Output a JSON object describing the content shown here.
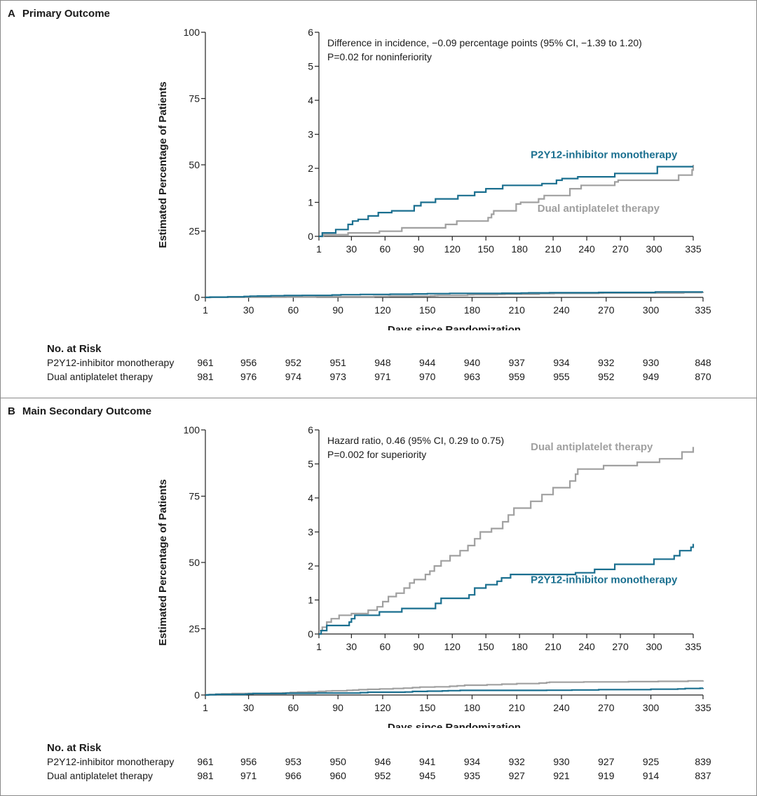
{
  "colors": {
    "monotherapy": "#1a6f8f",
    "dual": "#a0a0a0",
    "axis": "#222222",
    "border": "#8a8a8a"
  },
  "chart_data": [
    {
      "type": "line",
      "panel_letter": "A",
      "title": "Primary Outcome",
      "xlabel": "Days since Randomization",
      "ylabel": "Estimated Percentage of Patients",
      "x_ticks": [
        1,
        30,
        60,
        90,
        120,
        150,
        180,
        210,
        240,
        270,
        300,
        335
      ],
      "y_ticks": [
        0,
        25,
        50,
        75,
        100
      ],
      "xlim": [
        1,
        335
      ],
      "ylim": [
        0,
        100
      ],
      "series": [
        {
          "name": "P2Y12-inhibitor monotherapy",
          "color_key": "monotherapy",
          "x": [
            1,
            4,
            16,
            27,
            31,
            36,
            45,
            54,
            66,
            86,
            92,
            105,
            125,
            140,
            150,
            165,
            178,
            200,
            213,
            218,
            232,
            265,
            303,
            335
          ],
          "y": [
            0,
            0.1,
            0.2,
            0.35,
            0.45,
            0.5,
            0.6,
            0.7,
            0.75,
            0.9,
            1.0,
            1.1,
            1.2,
            1.3,
            1.4,
            1.5,
            1.5,
            1.55,
            1.65,
            1.7,
            1.75,
            1.85,
            2.05,
            2.05
          ]
        },
        {
          "name": "Dual antiplatelet therapy",
          "color_key": "dual",
          "x": [
            1,
            5,
            27,
            55,
            75,
            114,
            124,
            152,
            155,
            157,
            177,
            181,
            197,
            202,
            225,
            235,
            265,
            268,
            322,
            334,
            335
          ],
          "y": [
            0,
            0.05,
            0.1,
            0.15,
            0.25,
            0.35,
            0.45,
            0.55,
            0.65,
            0.75,
            0.95,
            1.0,
            1.1,
            1.2,
            1.4,
            1.5,
            1.6,
            1.65,
            1.8,
            1.95,
            2.1
          ]
        }
      ],
      "inset": {
        "x_ticks": [
          1,
          30,
          60,
          90,
          120,
          150,
          180,
          210,
          240,
          270,
          300,
          335
        ],
        "y_ticks": [
          0,
          1,
          2,
          3,
          4,
          5,
          6
        ],
        "xlim": [
          1,
          335
        ],
        "ylim": [
          0,
          6
        ],
        "annotation_lines": [
          "Difference in incidence, −0.09 percentage points (95% CI, −1.39 to 1.20)",
          "P=0.02 for noninferiority"
        ],
        "series_labels": [
          {
            "text": "P2Y12-inhibitor monotherapy",
            "color_key": "monotherapy",
            "x": 190,
            "y": 2.3
          },
          {
            "text": "Dual antiplatelet therapy",
            "color_key": "dual",
            "x": 196,
            "y": 0.72
          }
        ]
      },
      "risk_table": {
        "title": "No. at Risk",
        "x": [
          1,
          30,
          60,
          90,
          120,
          150,
          180,
          210,
          240,
          270,
          300,
          335
        ],
        "rows": [
          {
            "label": "P2Y12-inhibitor monotherapy",
            "values": [
              961,
              956,
              952,
              951,
              948,
              944,
              940,
              937,
              934,
              932,
              930,
              848
            ]
          },
          {
            "label": "Dual antiplatelet therapy",
            "values": [
              981,
              976,
              974,
              973,
              971,
              970,
              963,
              959,
              955,
              952,
              949,
              870
            ]
          }
        ]
      }
    },
    {
      "type": "line",
      "panel_letter": "B",
      "title": "Main Secondary Outcome",
      "xlabel": "Days since Randomization",
      "ylabel": "Estimated Percentage of Patients",
      "x_ticks": [
        1,
        30,
        60,
        90,
        120,
        150,
        180,
        210,
        240,
        270,
        300,
        335
      ],
      "y_ticks": [
        0,
        25,
        50,
        75,
        100
      ],
      "xlim": [
        1,
        335
      ],
      "ylim": [
        0,
        100
      ],
      "series": [
        {
          "name": "P2Y12-inhibitor monotherapy",
          "color_key": "monotherapy",
          "x": [
            1,
            3,
            8,
            28,
            30,
            33,
            55,
            75,
            105,
            110,
            135,
            140,
            150,
            160,
            164,
            172,
            230,
            247,
            265,
            300,
            318,
            323,
            333,
            335
          ],
          "y": [
            0,
            0.1,
            0.25,
            0.35,
            0.45,
            0.55,
            0.65,
            0.75,
            0.9,
            1.05,
            1.15,
            1.35,
            1.45,
            1.55,
            1.65,
            1.75,
            1.8,
            1.9,
            2.05,
            2.2,
            2.3,
            2.45,
            2.55,
            2.65
          ]
        },
        {
          "name": "Dual antiplatelet therapy",
          "color_key": "dual",
          "x": [
            1,
            4,
            8,
            12,
            19,
            30,
            45,
            53,
            58,
            63,
            70,
            77,
            82,
            86,
            96,
            100,
            104,
            110,
            118,
            127,
            134,
            140,
            145,
            155,
            165,
            170,
            175,
            190,
            200,
            210,
            225,
            230,
            232,
            255,
            285,
            305,
            325,
            335
          ],
          "y": [
            0.1,
            0.2,
            0.35,
            0.45,
            0.55,
            0.6,
            0.7,
            0.8,
            0.95,
            1.1,
            1.2,
            1.35,
            1.5,
            1.6,
            1.75,
            1.85,
            2.0,
            2.15,
            2.3,
            2.45,
            2.6,
            2.8,
            3.0,
            3.1,
            3.3,
            3.5,
            3.7,
            3.9,
            4.1,
            4.3,
            4.5,
            4.7,
            4.85,
            4.95,
            5.05,
            5.15,
            5.35,
            5.5
          ]
        }
      ],
      "inset": {
        "x_ticks": [
          1,
          30,
          60,
          90,
          120,
          150,
          180,
          210,
          240,
          270,
          300,
          335
        ],
        "y_ticks": [
          0,
          1,
          2,
          3,
          4,
          5,
          6
        ],
        "xlim": [
          1,
          335
        ],
        "ylim": [
          0,
          6
        ],
        "annotation_lines": [
          "Hazard ratio, 0.46 (95% CI, 0.29 to 0.75)",
          "P=0.002 for superiority"
        ],
        "series_labels": [
          {
            "text": "Dual antiplatelet therapy",
            "color_key": "dual",
            "x": 190,
            "y": 5.4
          },
          {
            "text": "P2Y12-inhibitor monotherapy",
            "color_key": "monotherapy",
            "x": 190,
            "y": 1.5
          }
        ]
      },
      "risk_table": {
        "title": "No. at Risk",
        "x": [
          1,
          30,
          60,
          90,
          120,
          150,
          180,
          210,
          240,
          270,
          300,
          335
        ],
        "rows": [
          {
            "label": "P2Y12-inhibitor monotherapy",
            "values": [
              961,
              956,
              953,
              950,
              946,
              941,
              934,
              932,
              930,
              927,
              925,
              839
            ]
          },
          {
            "label": "Dual antiplatelet therapy",
            "values": [
              981,
              971,
              966,
              960,
              952,
              945,
              935,
              927,
              921,
              919,
              914,
              837
            ]
          }
        ]
      }
    }
  ]
}
